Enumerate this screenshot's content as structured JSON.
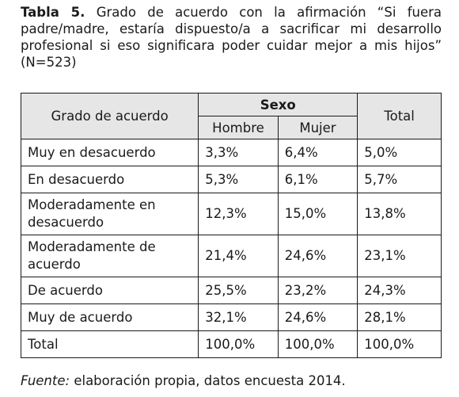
{
  "caption": {
    "label": "Tabla 5.",
    "text": "Grado de acuerdo con la afirmación “Si fuera padre/madre, estaría dispuesto/a a sacrificar mi desarrollo profesional si eso significara poder cuidar mejor a mis hijos” (N=523)"
  },
  "table": {
    "headers": {
      "grado": "Grado de acuerdo",
      "sexo": "Sexo",
      "hombre": "Hombre",
      "mujer": "Mujer",
      "total": "Total"
    },
    "rows": [
      {
        "label": "Muy en desacuerdo",
        "hombre": "3,3%",
        "mujer": "6,4%",
        "total": "5,0%"
      },
      {
        "label": "En desacuerdo",
        "hombre": "5,3%",
        "mujer": "6,1%",
        "total": "5,7%"
      },
      {
        "label": "Moderadamente en desacuerdo",
        "hombre": "12,3%",
        "mujer": "15,0%",
        "total": "13,8%"
      },
      {
        "label": "Moderadamente de acuerdo",
        "hombre": "21,4%",
        "mujer": "24,6%",
        "total": "23,1%"
      },
      {
        "label": "De acuerdo",
        "hombre": "25,5%",
        "mujer": "23,2%",
        "total": "24,3%"
      },
      {
        "label": "Muy de acuerdo",
        "hombre": "32,1%",
        "mujer": "24,6%",
        "total": "28,1%"
      },
      {
        "label": "Total",
        "hombre": "100,0%",
        "mujer": "100,0%",
        "total": "100,0%"
      }
    ]
  },
  "source": {
    "label": "Fuente:",
    "text": "elaboración propia, datos encuesta 2014."
  }
}
